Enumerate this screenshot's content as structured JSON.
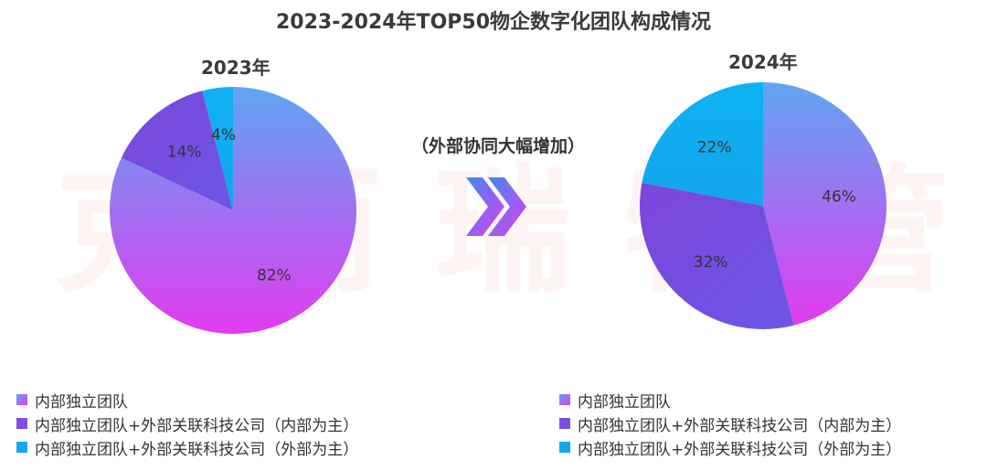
{
  "header": {
    "title": "2023-2024年TOP50物企数字化团队构成情况"
  },
  "watermark": {
    "text": [
      "克",
      "而",
      "瑞",
      "物",
      "管"
    ]
  },
  "middle_note": "（外部协同大幅增加）",
  "colors": {
    "internal": "#6FA4F0",
    "internal_pink": "#E23BF0",
    "internal_dominant": "#7B4FE0",
    "external_dominant": "#12A8EE"
  },
  "legend": {
    "items": [
      {
        "label": "内部独立团队",
        "color": "#6FA4F0"
      },
      {
        "label": "内部独立团队+外部关联科技公司（内部为主）",
        "color": "#7B4FE0"
      },
      {
        "label": "内部独立团队+外部关联科技公司（外部为主）",
        "color": "#12A8EE"
      }
    ]
  },
  "chart_data": [
    {
      "type": "pie",
      "title": "2023年",
      "categories": [
        "内部独立团队",
        "内部独立团队+外部关联科技公司（内部为主）",
        "内部独立团队+外部关联科技公司（外部为主）"
      ],
      "values": [
        82,
        14,
        4
      ],
      "labels": [
        "82%",
        "14%",
        "4%"
      ]
    },
    {
      "type": "pie",
      "title": "2024年",
      "categories": [
        "内部独立团队",
        "内部独立团队+外部关联科技公司（内部为主）",
        "内部独立团队+外部关联科技公司（外部为主）"
      ],
      "values": [
        46,
        32,
        22
      ],
      "labels": [
        "46%",
        "32%",
        "22%"
      ]
    }
  ]
}
